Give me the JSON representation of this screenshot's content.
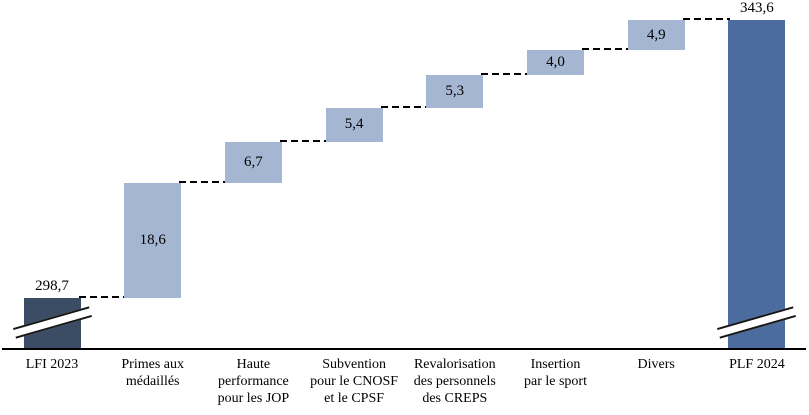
{
  "chart_data": {
    "type": "bar",
    "subtype": "waterfall",
    "title": "",
    "xlabel": "",
    "ylabel": "",
    "legend": "none",
    "grid": "off",
    "connector_style": "dashed",
    "value_axis": {
      "visible": false,
      "broken": true,
      "implied_range": [
        290,
        345
      ]
    },
    "categories": [
      "LFI 2023",
      "Primes aux médaillés",
      "Haute performance pour les JOP",
      "Subvention pour le CNOSF et le CPSF",
      "Revalorisation des personnels des CREPS",
      "Insertion par le sport",
      "Divers",
      "PLF 2024"
    ],
    "bars": [
      {
        "category": "LFI 2023",
        "category_lines": [
          "LFI 2023"
        ],
        "value": 298.7,
        "display": "298,7",
        "kind": "total-start",
        "value_label_position": "above",
        "axis_break": true
      },
      {
        "category": "Primes aux médaillés",
        "category_lines": [
          "Primes aux",
          "médaillés"
        ],
        "value": 18.6,
        "display": "18,6",
        "kind": "increase",
        "value_label_position": "inside",
        "axis_break": false
      },
      {
        "category": "Haute performance pour les JOP",
        "category_lines": [
          "Haute",
          "performance",
          "pour les JOP"
        ],
        "value": 6.7,
        "display": "6,7",
        "kind": "increase",
        "value_label_position": "inside",
        "axis_break": false
      },
      {
        "category": "Subvention pour le CNOSF et le CPSF",
        "category_lines": [
          "Subvention",
          "pour le CNOSF",
          "et le CPSF"
        ],
        "value": 5.4,
        "display": "5,4",
        "kind": "increase",
        "value_label_position": "inside",
        "axis_break": false
      },
      {
        "category": "Revalorisation des personnels des CREPS",
        "category_lines": [
          "Revalorisation",
          "des personnels",
          "des CREPS"
        ],
        "value": 5.3,
        "display": "5,3",
        "kind": "increase",
        "value_label_position": "inside",
        "axis_break": false
      },
      {
        "category": "Insertion par le sport",
        "category_lines": [
          "Insertion",
          "par le sport"
        ],
        "value": 4.0,
        "display": "4,0",
        "kind": "increase",
        "value_label_position": "inside",
        "axis_break": false
      },
      {
        "category": "Divers",
        "category_lines": [
          "Divers"
        ],
        "value": 4.9,
        "display": "4,9",
        "kind": "increase",
        "value_label_position": "inside",
        "axis_break": false
      },
      {
        "category": "PLF 2024",
        "category_lines": [
          "PLF 2024"
        ],
        "value": 343.6,
        "display": "343,6",
        "kind": "total-end",
        "value_label_position": "above",
        "axis_break": true
      }
    ],
    "colors": {
      "total_start_bar": "#3a4d64",
      "total_end_bar": "#4b6c9e",
      "increase_bar": "#a5b6d2",
      "connector": "#000000",
      "axis_line": "#000000",
      "value_text": "#000000",
      "category_text": "#000000",
      "background": "#ffffff"
    }
  }
}
